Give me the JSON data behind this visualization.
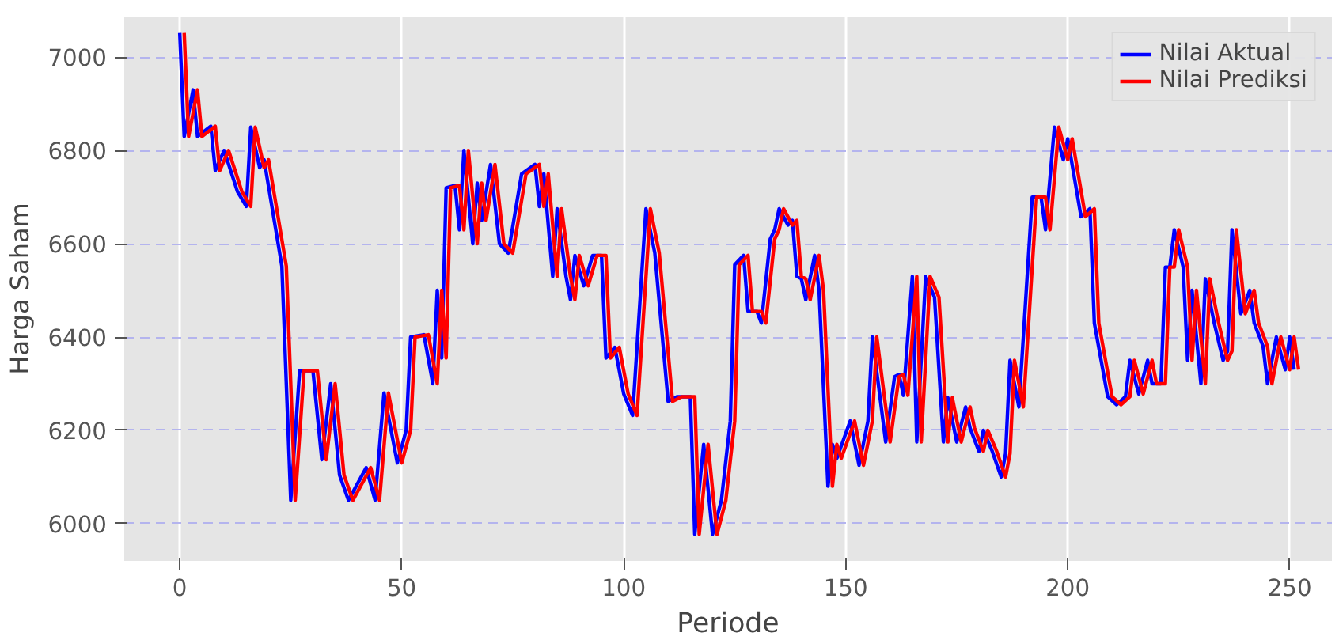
{
  "chart_data": {
    "type": "line",
    "xlabel": "Periode",
    "ylabel": "Harga Saham",
    "xlim": [
      -12.5,
      259.5
    ],
    "ylim": [
      5920,
      7087
    ],
    "xticks": [
      0,
      50,
      100,
      150,
      200,
      250
    ],
    "yticks": [
      6000,
      6200,
      6400,
      6600,
      6800,
      7000
    ],
    "grid": true,
    "legend": "top right",
    "line_style": "solid",
    "series": [
      {
        "name": "Nilai Aktual",
        "color": "#0000ff",
        "x": [
          0,
          1,
          3,
          4,
          7,
          8,
          10,
          13,
          15,
          16,
          18,
          19,
          23,
          25,
          27,
          30,
          32,
          34,
          36,
          38,
          42,
          44,
          46,
          49,
          51,
          52,
          55,
          57,
          58,
          59,
          60,
          62,
          63,
          64,
          66,
          67,
          68,
          70,
          72,
          74,
          77,
          80,
          81,
          82,
          84,
          85,
          87,
          88,
          89,
          91,
          93,
          95,
          96,
          98,
          100,
          102,
          105,
          107,
          110,
          112,
          115,
          116,
          118,
          120,
          122,
          124,
          125,
          127,
          128,
          130,
          131,
          133,
          134,
          135,
          137,
          138,
          139,
          140,
          141,
          143,
          144,
          146,
          147,
          148,
          151,
          153,
          155,
          156,
          159,
          161,
          162,
          163,
          165,
          166,
          168,
          170,
          172,
          173,
          175,
          177,
          178,
          180,
          181,
          183,
          185,
          186,
          187,
          189,
          192,
          194,
          195,
          197,
          199,
          200,
          203,
          205,
          206,
          209,
          211,
          213,
          214,
          216,
          218,
          219,
          221,
          222,
          223,
          224,
          226,
          227,
          228,
          230,
          231,
          233,
          235,
          236,
          237,
          239,
          241,
          242,
          244,
          245,
          247,
          249,
          250,
          251
        ],
        "values": [
          7052,
          6830,
          6930,
          6830,
          6852,
          6757,
          6800,
          6712,
          6680,
          6850,
          6763,
          6780,
          6552,
          6050,
          6328,
          6328,
          6137,
          6300,
          6104,
          6050,
          6120,
          6050,
          6280,
          6130,
          6200,
          6400,
          6405,
          6300,
          6500,
          6355,
          6720,
          6725,
          6630,
          6800,
          6600,
          6730,
          6650,
          6770,
          6600,
          6580,
          6750,
          6770,
          6680,
          6750,
          6530,
          6675,
          6530,
          6480,
          6575,
          6510,
          6575,
          6575,
          6355,
          6378,
          6278,
          6232,
          6675,
          6580,
          6262,
          6272,
          6272,
          5977,
          6170,
          5977,
          6050,
          6220,
          6555,
          6575,
          6455,
          6455,
          6430,
          6610,
          6630,
          6675,
          6640,
          6650,
          6530,
          6525,
          6480,
          6575,
          6500,
          6080,
          6170,
          6140,
          6220,
          6125,
          6220,
          6400,
          6175,
          6315,
          6320,
          6275,
          6530,
          6175,
          6530,
          6485,
          6175,
          6270,
          6175,
          6250,
          6205,
          6155,
          6200,
          6155,
          6100,
          6150,
          6350,
          6250,
          6700,
          6700,
          6630,
          6850,
          6780,
          6825,
          6658,
          6675,
          6430,
          6272,
          6255,
          6272,
          6350,
          6278,
          6350,
          6300,
          6300,
          6550,
          6550,
          6630,
          6550,
          6350,
          6500,
          6300,
          6525,
          6430,
          6350,
          6370,
          6630,
          6450,
          6500,
          6430,
          6380,
          6300,
          6400,
          6330,
          6400,
          6330
        ]
      },
      {
        "name": "Nilai Prediksi",
        "color": "#ff0000",
        "x": [
          1,
          2,
          4,
          5,
          8,
          9,
          11,
          14,
          16,
          17,
          19,
          20,
          24,
          26,
          28,
          31,
          33,
          35,
          37,
          39,
          43,
          45,
          47,
          50,
          52,
          53,
          56,
          58,
          59,
          60,
          61,
          63,
          64,
          65,
          67,
          68,
          69,
          71,
          73,
          75,
          78,
          81,
          82,
          83,
          85,
          86,
          88,
          89,
          90,
          92,
          94,
          96,
          97,
          99,
          101,
          103,
          106,
          108,
          111,
          113,
          116,
          117,
          119,
          121,
          123,
          125,
          126,
          128,
          129,
          131,
          132,
          134,
          135,
          136,
          138,
          139,
          140,
          141,
          142,
          144,
          145,
          147,
          148,
          149,
          152,
          154,
          156,
          157,
          160,
          162,
          163,
          164,
          166,
          167,
          169,
          171,
          173,
          174,
          176,
          178,
          179,
          181,
          182,
          184,
          186,
          187,
          188,
          190,
          193,
          195,
          196,
          198,
          200,
          201,
          204,
          206,
          207,
          210,
          212,
          214,
          215,
          217,
          219,
          220,
          222,
          223,
          224,
          225,
          227,
          228,
          229,
          231,
          232,
          234,
          236,
          237,
          238,
          240,
          242,
          243,
          245,
          246,
          248,
          250,
          251,
          252
        ],
        "values": [
          7052,
          6830,
          6930,
          6830,
          6852,
          6757,
          6800,
          6712,
          6680,
          6850,
          6763,
          6780,
          6552,
          6050,
          6328,
          6328,
          6137,
          6300,
          6104,
          6050,
          6120,
          6050,
          6280,
          6130,
          6200,
          6400,
          6405,
          6300,
          6500,
          6355,
          6720,
          6725,
          6630,
          6800,
          6600,
          6730,
          6650,
          6770,
          6600,
          6580,
          6750,
          6770,
          6680,
          6750,
          6530,
          6675,
          6530,
          6480,
          6575,
          6510,
          6575,
          6575,
          6355,
          6378,
          6278,
          6232,
          6675,
          6580,
          6262,
          6272,
          6272,
          5977,
          6170,
          5977,
          6050,
          6220,
          6555,
          6575,
          6455,
          6455,
          6430,
          6610,
          6630,
          6675,
          6640,
          6650,
          6530,
          6525,
          6480,
          6575,
          6500,
          6080,
          6170,
          6140,
          6220,
          6125,
          6220,
          6400,
          6175,
          6315,
          6320,
          6275,
          6530,
          6175,
          6530,
          6485,
          6175,
          6270,
          6175,
          6250,
          6205,
          6155,
          6200,
          6155,
          6100,
          6150,
          6350,
          6250,
          6700,
          6700,
          6630,
          6850,
          6780,
          6825,
          6658,
          6675,
          6430,
          6272,
          6255,
          6272,
          6350,
          6278,
          6350,
          6300,
          6300,
          6550,
          6550,
          6630,
          6550,
          6350,
          6500,
          6300,
          6525,
          6430,
          6350,
          6370,
          6630,
          6450,
          6500,
          6430,
          6380,
          6300,
          6400,
          6330,
          6400,
          6330
        ]
      }
    ]
  }
}
